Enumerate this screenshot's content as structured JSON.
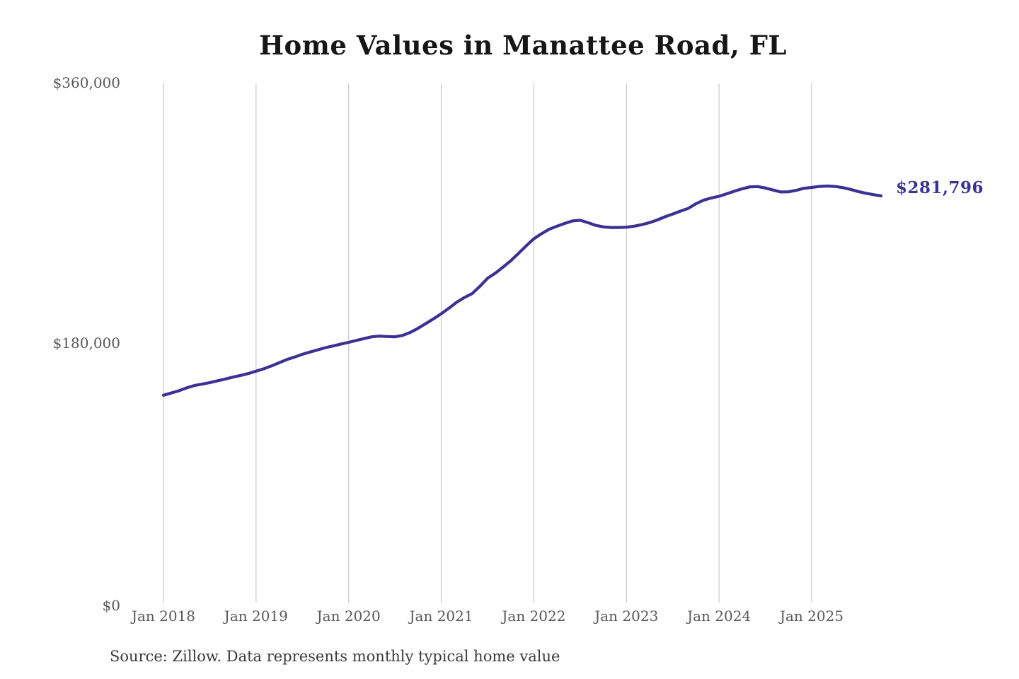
{
  "colors": {
    "line": "#3b3195",
    "grid": "#cccccc",
    "axis_text": "#595959",
    "title_text": "#161616",
    "source_text": "#3a3a3a",
    "end_label_text": "#3b3195",
    "background": "#ffffff"
  },
  "end_label": "$281,796",
  "source_note": "Source: Zillow. Data represents monthly typical home value",
  "chart_data": {
    "type": "line",
    "title": "Home Values in Manattee Road, FL",
    "xlabel": "",
    "ylabel": "",
    "ylim": [
      0,
      360000
    ],
    "grid": "vertical-only",
    "legend": false,
    "x_unit": "month",
    "x_start": "2018-01",
    "x_end": "2025-10",
    "x_tick_labels": [
      "Jan 2018",
      "Jan 2019",
      "Jan 2020",
      "Jan 2021",
      "Jan 2022",
      "Jan 2023",
      "Jan 2024",
      "Jan 2025"
    ],
    "y_tick_labels": [
      "$360,000",
      "$180,000",
      "$0"
    ],
    "y_tick_values": [
      360000,
      180000,
      0
    ],
    "latest_value": 281796,
    "series": [
      {
        "name": "Monthly typical home value",
        "values": [
          143900,
          145400,
          147000,
          149000,
          150600,
          151600,
          152600,
          153900,
          155100,
          156400,
          157600,
          158900,
          160600,
          162200,
          164200,
          166400,
          168600,
          170300,
          172200,
          173800,
          175300,
          176800,
          178000,
          179300,
          180500,
          181800,
          183100,
          184300,
          184800,
          184500,
          184300,
          185300,
          187400,
          190200,
          193500,
          196800,
          200300,
          204100,
          208200,
          211500,
          214200,
          219200,
          224800,
          228300,
          232500,
          236900,
          241900,
          247200,
          252100,
          255600,
          258700,
          260800,
          262700,
          264400,
          264900,
          263300,
          261400,
          260300,
          259900,
          259900,
          260100,
          260800,
          261900,
          263300,
          265100,
          267300,
          269200,
          271200,
          273100,
          276300,
          278800,
          280300,
          281500,
          283200,
          285000,
          286700,
          288000,
          288200,
          287200,
          285800,
          284500,
          284600,
          285600,
          287000,
          287600,
          288300,
          288600,
          288300,
          287500,
          286300,
          284800,
          283600,
          282600,
          281796
        ]
      }
    ]
  }
}
